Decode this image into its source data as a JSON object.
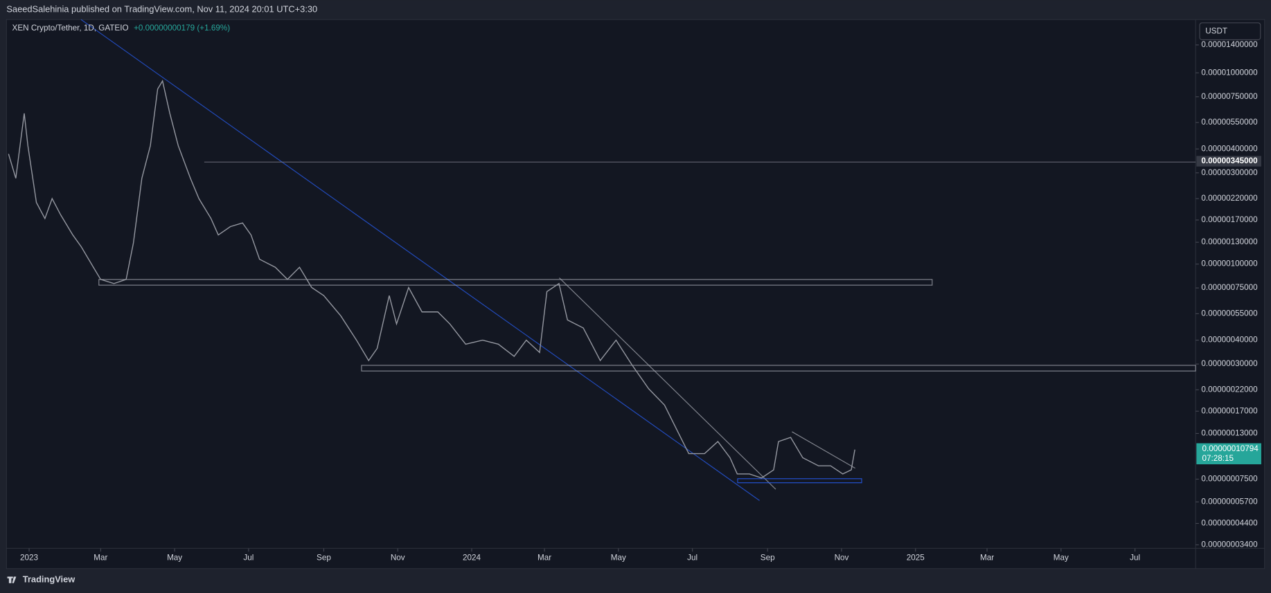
{
  "header": {
    "publisher": "SaeedSalehinia published on TradingView.com, Nov 11, 2024 20:01 UTC+3:30"
  },
  "footer": {
    "brand": "TradingView"
  },
  "chart_data": {
    "type": "line",
    "title": "XEN Crypto/Tether, 1D, GATEIO",
    "change": "+0.00000000179 (+1.69%)",
    "currency": "USDT",
    "log_scale": true,
    "xlim": [
      -18,
      962
    ],
    "ylim": [
      3.26e-08,
      1.9e-05
    ],
    "xticks": [
      {
        "value": 0,
        "label": "2023"
      },
      {
        "value": 59,
        "label": "Mar"
      },
      {
        "value": 120,
        "label": "May"
      },
      {
        "value": 181,
        "label": "Jul"
      },
      {
        "value": 243,
        "label": "Sep"
      },
      {
        "value": 304,
        "label": "Nov"
      },
      {
        "value": 365,
        "label": "2024"
      },
      {
        "value": 425,
        "label": "Mar"
      },
      {
        "value": 486,
        "label": "May"
      },
      {
        "value": 547,
        "label": "Jul"
      },
      {
        "value": 609,
        "label": "Sep"
      },
      {
        "value": 670,
        "label": "Nov"
      },
      {
        "value": 731,
        "label": "2025"
      },
      {
        "value": 790,
        "label": "Mar"
      },
      {
        "value": 851,
        "label": "May"
      },
      {
        "value": 912,
        "label": "Jul"
      }
    ],
    "yticks": [
      {
        "value": 1.4e-05,
        "label": "0.00001400000"
      },
      {
        "value": 1e-05,
        "label": "0.00001000000"
      },
      {
        "value": 7.5e-06,
        "label": "0.00000750000"
      },
      {
        "value": 5.5e-06,
        "label": "0.00000550000"
      },
      {
        "value": 4e-06,
        "label": "0.00000400000"
      },
      {
        "value": 3e-06,
        "label": "0.00000300000"
      },
      {
        "value": 2.2e-06,
        "label": "0.00000220000"
      },
      {
        "value": 1.7e-06,
        "label": "0.00000170000"
      },
      {
        "value": 1.3e-06,
        "label": "0.00000130000"
      },
      {
        "value": 1e-06,
        "label": "0.00000100000"
      },
      {
        "value": 7.5e-07,
        "label": "0.00000075000"
      },
      {
        "value": 5.5e-07,
        "label": "0.00000055000"
      },
      {
        "value": 4e-07,
        "label": "0.00000040000"
      },
      {
        "value": 3e-07,
        "label": "0.00000030000"
      },
      {
        "value": 2.2e-07,
        "label": "0.00000022000"
      },
      {
        "value": 1.7e-07,
        "label": "0.00000017000"
      },
      {
        "value": 1.3e-07,
        "label": "0.00000013000"
      },
      {
        "value": 7.5e-08,
        "label": "0.00000007500"
      },
      {
        "value": 5.7e-08,
        "label": "0.00000005700"
      },
      {
        "value": 4.4e-08,
        "label": "0.00000004400"
      },
      {
        "value": 3.4e-08,
        "label": "0.00000003400"
      }
    ],
    "level": {
      "value": 3.45e-06,
      "label": "0.00000345000"
    },
    "last_price": {
      "value": 1.0794e-07,
      "label": "0.00000010794",
      "countdown": "07:28:15"
    },
    "color": "#9598a1",
    "x": [
      -17,
      -11,
      -4,
      -1,
      6,
      13,
      19,
      26,
      36,
      43,
      53,
      59,
      70,
      80,
      86,
      93,
      100,
      106,
      110,
      116,
      123,
      133,
      140,
      150,
      156,
      166,
      176,
      183,
      190,
      203,
      213,
      223,
      233,
      243,
      257,
      270,
      280,
      287,
      297,
      303,
      313,
      324,
      337,
      347,
      360,
      374,
      387,
      400,
      410,
      421,
      427,
      437,
      444,
      457,
      471,
      484,
      497,
      511,
      524,
      534,
      544,
      557,
      568,
      578,
      584,
      594,
      604,
      614,
      618,
      628,
      638,
      651,
      661,
      671,
      678,
      681
    ],
    "values": [
      3.77e-06,
      2.81e-06,
      6.14e-06,
      4.16e-06,
      2.1e-06,
      1.73e-06,
      2.2e-06,
      1.81e-06,
      1.42e-06,
      1.23e-06,
      9.62e-07,
      8.31e-07,
      7.91e-07,
      8.31e-07,
      1.29e-06,
      2.81e-06,
      4.16e-06,
      8.23e-06,
      9.07e-06,
      6.14e-06,
      4.16e-06,
      2.81e-06,
      2.2e-06,
      1.73e-06,
      1.42e-06,
      1.57e-06,
      1.64e-06,
      1.42e-06,
      1.06e-06,
      9.62e-07,
      8.31e-07,
      9.62e-07,
      7.54e-07,
      6.84e-07,
      5.36e-07,
      4e-07,
      3.13e-07,
      3.62e-07,
      6.84e-07,
      4.86e-07,
      7.54e-07,
      5.62e-07,
      5.62e-07,
      4.86e-07,
      3.81e-07,
      4e-07,
      3.81e-07,
      3.29e-07,
      4e-07,
      3.45e-07,
      7.18e-07,
      7.91e-07,
      5.1e-07,
      4.63e-07,
      3.13e-07,
      4e-07,
      2.98e-07,
      2.226e-07,
      1.83e-07,
      1.367e-07,
      1.02e-07,
      1.02e-07,
      1.18e-07,
      9.71e-08,
      7.99e-08,
      7.99e-08,
      7.61e-08,
      8.39e-08,
      1.18e-07,
      1.24e-07,
      9.71e-08,
      8.81e-08,
      8.81e-08,
      7.99e-08,
      8.39e-08,
      1.07e-07
    ]
  }
}
